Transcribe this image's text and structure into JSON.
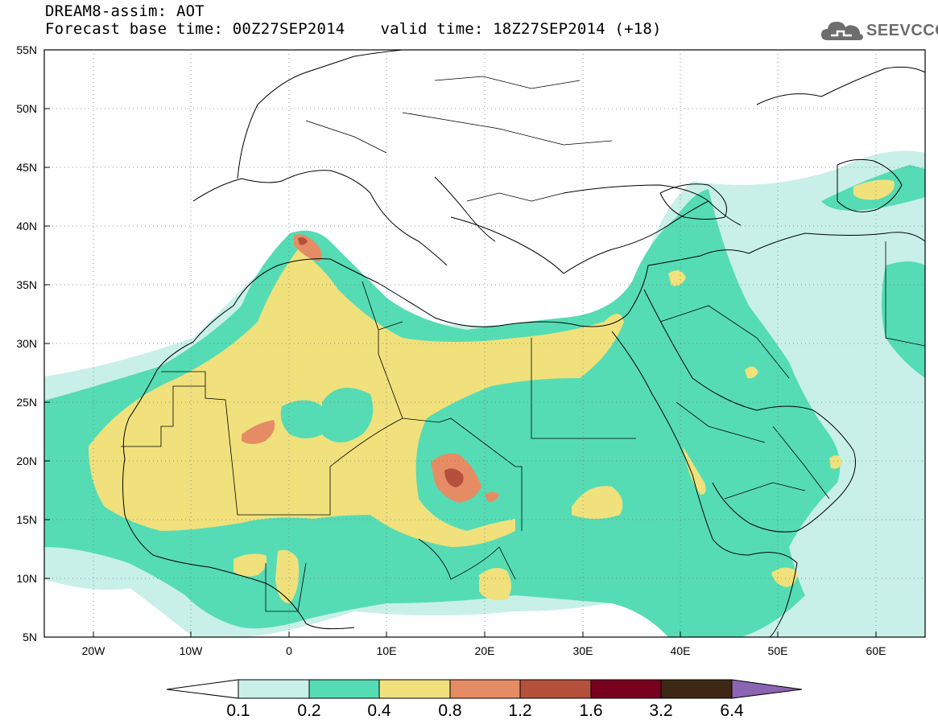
{
  "header": {
    "title_line1": "DREAM8-assim: AOT",
    "base_time_label": "Forecast base time: 00Z27SEP2014",
    "valid_time_label": "valid time: 18Z27SEP2014 (+18)"
  },
  "logo": {
    "text": "SEEVCCC",
    "icon": "cloud-icon",
    "color": "#6d6d6d"
  },
  "map": {
    "lat_labels": [
      "55N",
      "50N",
      "45N",
      "40N",
      "35N",
      "30N",
      "25N",
      "20N",
      "15N",
      "10N",
      "5N"
    ],
    "lon_labels": [
      "20W",
      "10W",
      "0",
      "10E",
      "20E",
      "30E",
      "40E",
      "50E",
      "60E"
    ],
    "lon_range": [
      -25,
      65
    ],
    "lat_range": [
      5,
      55
    ]
  },
  "colorbar": {
    "labels": [
      "0.1",
      "0.2",
      "0.4",
      "0.8",
      "1.2",
      "1.6",
      "3.2",
      "6.4"
    ],
    "colors": [
      "#ffffff",
      "#c8f0e8",
      "#55dcb4",
      "#f0e17c",
      "#e68c64",
      "#b4503c",
      "#78001e",
      "#3c2814",
      "#8c64b4"
    ]
  }
}
